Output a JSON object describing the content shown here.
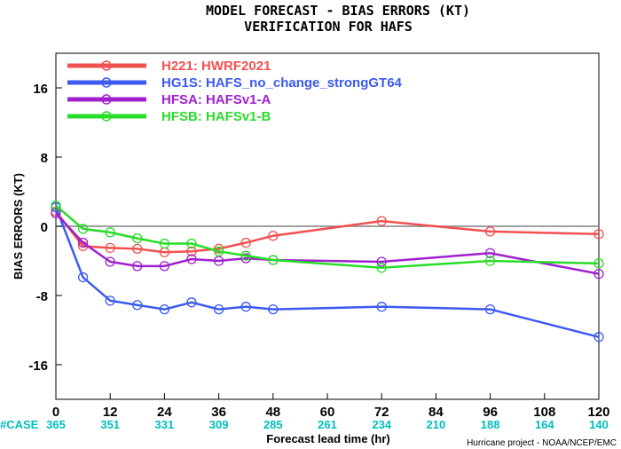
{
  "chart_data": {
    "type": "line",
    "title": "MODEL FORECAST - BIAS ERRORS (KT)",
    "subtitle": "VERIFICATION FOR HAFS",
    "xlabel": "Forecast lead time (hr)",
    "ylabel": "BIAS ERRORS (KT)",
    "xlim": [
      0,
      120
    ],
    "ylim": [
      -20,
      20
    ],
    "x_ticks": [
      "0",
      "12",
      "24",
      "36",
      "48",
      "60",
      "72",
      "84",
      "96",
      "108",
      "120"
    ],
    "y_ticks": [
      "16",
      "8",
      "0",
      "-8",
      "-16"
    ],
    "grid": false,
    "legend_position": "top-left",
    "case_label": "#CASE",
    "cases": [
      {
        "x": 0,
        "n": "365"
      },
      {
        "x": 12,
        "n": "351"
      },
      {
        "x": 24,
        "n": "331"
      },
      {
        "x": 36,
        "n": "309"
      },
      {
        "x": 48,
        "n": "285"
      },
      {
        "x": 60,
        "n": "261"
      },
      {
        "x": 72,
        "n": "234"
      },
      {
        "x": 84,
        "n": "210"
      },
      {
        "x": 96,
        "n": "188"
      },
      {
        "x": 108,
        "n": "164"
      },
      {
        "x": 120,
        "n": "140"
      }
    ],
    "series": [
      {
        "name": "H221: HWRF2021",
        "color": "#f25050",
        "points": [
          [
            0,
            1.7
          ],
          [
            6,
            -2.3
          ],
          [
            12,
            -2.5
          ],
          [
            18,
            -2.6
          ],
          [
            24,
            -3.0
          ],
          [
            30,
            -2.9
          ],
          [
            36,
            -2.6
          ],
          [
            42,
            -1.9
          ],
          [
            48,
            -1.1
          ],
          [
            72,
            0.6
          ],
          [
            96,
            -0.6
          ],
          [
            120,
            -0.9
          ]
        ]
      },
      {
        "name": "HG1S: HAFS_no_change_strongGT64",
        "color": "#3c5af0",
        "points": [
          [
            0,
            2.2
          ],
          [
            6,
            -5.9
          ],
          [
            12,
            -8.6
          ],
          [
            18,
            -9.1
          ],
          [
            24,
            -9.6
          ],
          [
            30,
            -8.8
          ],
          [
            36,
            -9.6
          ],
          [
            42,
            -9.3
          ],
          [
            48,
            -9.6
          ],
          [
            72,
            -9.3
          ],
          [
            96,
            -9.6
          ],
          [
            120,
            -12.8
          ]
        ]
      },
      {
        "name": "HFSA: HAFSv1-A",
        "color": "#a020d0",
        "points": [
          [
            0,
            1.5
          ],
          [
            6,
            -1.9
          ],
          [
            12,
            -4.1
          ],
          [
            18,
            -4.6
          ],
          [
            24,
            -4.6
          ],
          [
            30,
            -3.8
          ],
          [
            36,
            -4.0
          ],
          [
            42,
            -3.7
          ],
          [
            48,
            -3.9
          ],
          [
            72,
            -4.1
          ],
          [
            96,
            -3.1
          ],
          [
            120,
            -5.5
          ]
        ]
      },
      {
        "name": "HFSB: HAFSv1-B",
        "color": "#28dc28",
        "points": [
          [
            0,
            2.4
          ],
          [
            6,
            -0.3
          ],
          [
            12,
            -0.7
          ],
          [
            18,
            -1.4
          ],
          [
            24,
            -2.0
          ],
          [
            30,
            -2.0
          ],
          [
            36,
            -2.9
          ],
          [
            42,
            -3.4
          ],
          [
            48,
            -3.9
          ],
          [
            72,
            -4.8
          ],
          [
            96,
            -4.0
          ],
          [
            120,
            -4.3
          ]
        ]
      }
    ],
    "reference_line": 0,
    "credit": "Hurricane project - NOAA/NCEP/EMC"
  },
  "colors": {
    "case_numbers": "#00bebe",
    "reference_line": "#808080"
  }
}
